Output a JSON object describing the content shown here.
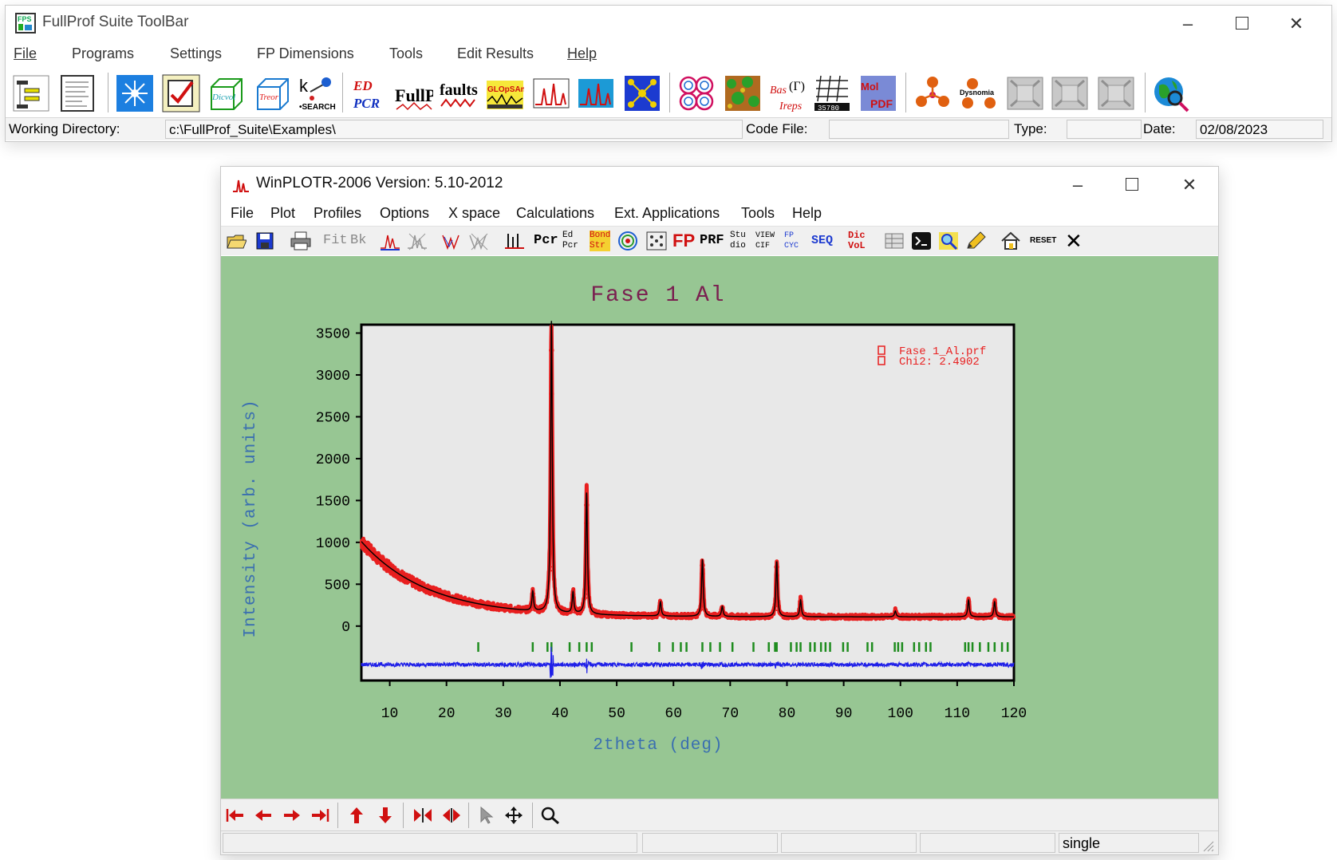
{
  "fullprof": {
    "title": "FullProf Suite ToolBar",
    "menu": [
      "File",
      "Programs",
      "Settings",
      "FP Dimensions",
      "Tools",
      "Edit Results",
      "Help"
    ],
    "toolbar_icons": [
      {
        "icon": "edpcr-tree-icon"
      },
      {
        "icon": "document-icon"
      },
      {
        "icon": "sun-icon"
      },
      {
        "icon": "checklist-icon"
      },
      {
        "icon": "dicvol-icon",
        "text": "Dicvol"
      },
      {
        "icon": "treor-icon",
        "text": "Treor"
      },
      {
        "icon": "ksearch-icon",
        "text": "SEARCH"
      },
      {
        "icon": "edpcr-icon",
        "text1": "ED",
        "text2": "PCR"
      },
      {
        "icon": "fullprof-icon",
        "text": "FullProf"
      },
      {
        "icon": "faults-icon",
        "text": "faults"
      },
      {
        "icon": "glopsann-icon",
        "text": "GLOpSAnn"
      },
      {
        "icon": "pattern-icon"
      },
      {
        "icon": "pattern2-icon"
      },
      {
        "icon": "structure-icon"
      },
      {
        "icon": "rings-icon"
      },
      {
        "icon": "map-icon"
      },
      {
        "icon": "bastreps-icon",
        "text": "BasIreps"
      },
      {
        "icon": "grid-icon",
        "text": "35780"
      },
      {
        "icon": "pdf-icon",
        "text": "PDF"
      },
      {
        "icon": "molecule-icon"
      },
      {
        "icon": "dysnomia-icon",
        "text": "Dysnomia"
      },
      {
        "icon": "grey1-icon"
      },
      {
        "icon": "grey2-icon"
      },
      {
        "icon": "grey3-icon"
      },
      {
        "icon": "globe-search-icon"
      }
    ],
    "status": {
      "working_dir_label": "Working Directory:",
      "working_dir": "c:\\FullProf_Suite\\Examples\\",
      "code_file_label": "Code File:",
      "code_file": "",
      "type_label": "Type:",
      "type": "",
      "date_label": "Date:",
      "date": "02/08/2023"
    }
  },
  "winplotr": {
    "title": "WinPLOTR-2006 Version: 5.10-2012",
    "menu": [
      "File",
      "Plot",
      "Profiles",
      "Options",
      "X space",
      "Calculations",
      "Ext. Applications",
      "Tools",
      "Help"
    ],
    "toolbar": [
      "Fit",
      "Bk",
      "Pcr",
      "Ed Pcr",
      "Bond Str",
      "FP",
      "PRF",
      "Stu dio",
      "VIEW CIF",
      "FP CYC",
      "SEQ",
      "Dic VoL",
      "RESET"
    ],
    "status": {
      "mode": "single"
    }
  },
  "chart_data": {
    "type": "scatter",
    "title": "Fase 1 Al",
    "xlabel": "2theta (deg)",
    "ylabel": "Intensity (arb. units)",
    "xlim": [
      5,
      120
    ],
    "ylim": [
      -650,
      3600
    ],
    "xticks": [
      10,
      20,
      30,
      40,
      50,
      60,
      70,
      80,
      90,
      100,
      110,
      120
    ],
    "yticks": [
      0,
      500,
      1000,
      1500,
      2000,
      2500,
      3000,
      3500
    ],
    "legend": {
      "placement": "top-right",
      "entries": [
        "Fase 1_Al.prf",
        "Chi2:    2.4902"
      ]
    },
    "background_model": {
      "c": 110,
      "a": 900,
      "k": 0.085
    },
    "peaks": [
      {
        "x": 35.2,
        "y": 230
      },
      {
        "x": 38.5,
        "y": 3480
      },
      {
        "x": 42.3,
        "y": 250
      },
      {
        "x": 44.7,
        "y": 1450
      },
      {
        "x": 57.7,
        "y": 170
      },
      {
        "x": 65.1,
        "y": 680
      },
      {
        "x": 68.6,
        "y": 120
      },
      {
        "x": 78.2,
        "y": 660
      },
      {
        "x": 82.4,
        "y": 200
      },
      {
        "x": 99.1,
        "y": 70
      },
      {
        "x": 112.0,
        "y": 200
      },
      {
        "x": 116.6,
        "y": 180
      }
    ],
    "bragg_positions": [
      25.6,
      35.2,
      37.8,
      38.5,
      41.7,
      43.4,
      44.7,
      45.6,
      52.6,
      57.5,
      59.9,
      61.3,
      62.3,
      65.1,
      66.5,
      68.2,
      70.4,
      74.1,
      76.8,
      77.9,
      78.2,
      80.7,
      81.7,
      82.4,
      84.1,
      84.9,
      86.0,
      86.8,
      87.6,
      89.9,
      90.7,
      94.2,
      95.0,
      99.0,
      99.6,
      100.3,
      102.4,
      103.3,
      104.5,
      105.3,
      111.4,
      112.0,
      112.7,
      114.0,
      115.5,
      116.6,
      117.9,
      118.9
    ],
    "difference_offset": -460,
    "colors": {
      "observed": "#e81f1f",
      "calculated": "#000000",
      "difference": "#1f1fe8",
      "bragg": "#1e8c1e",
      "title": "#7a2050",
      "axis_label": "#3a6fb0",
      "plot_bg": "#97c693",
      "frame_bg": "#e8e8e8"
    }
  }
}
